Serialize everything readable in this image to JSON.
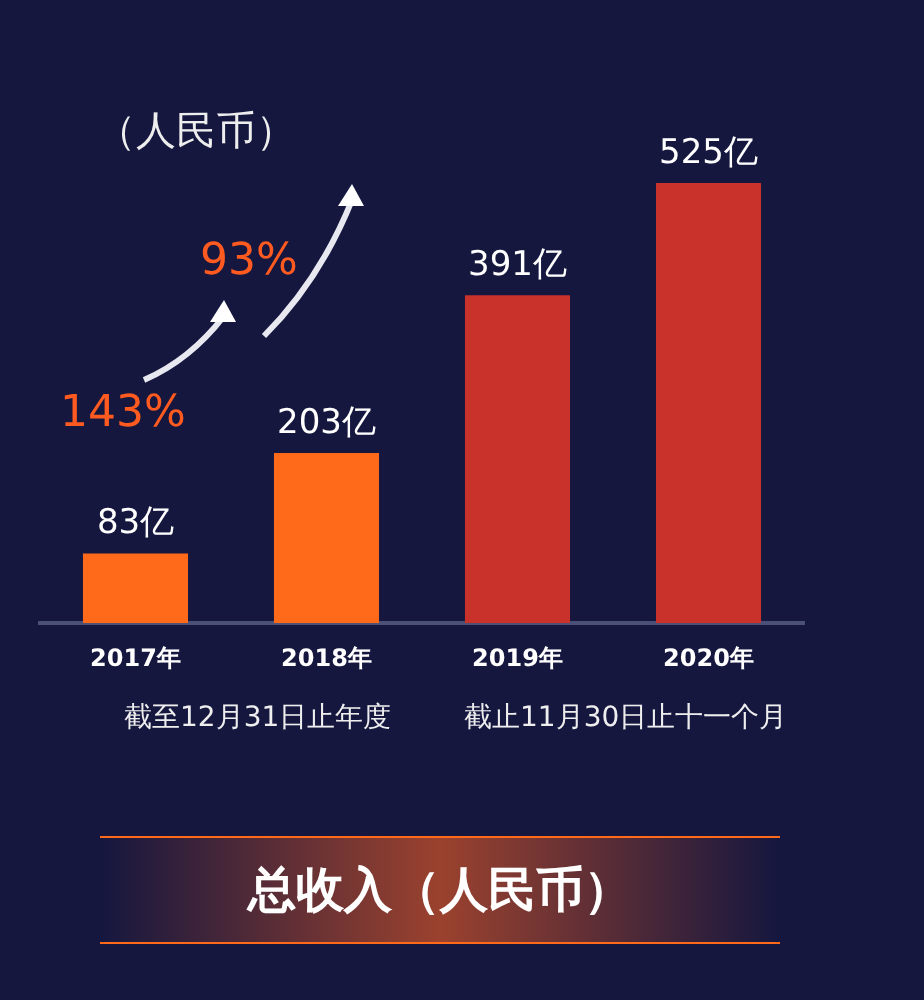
{
  "chart_data": {
    "type": "bar",
    "title": "总收入（人民币）",
    "subtitle": "（人民币）",
    "categories": [
      "2017年",
      "2018年",
      "2019年",
      "2020年"
    ],
    "values": [
      83,
      203,
      391,
      525
    ],
    "value_labels": [
      "83亿",
      "203亿",
      "391亿",
      "525亿"
    ],
    "colors": [
      "#ff6a1a",
      "#ff6a1a",
      "#c8322a",
      "#c8322a"
    ],
    "annotations": [
      "143%",
      "93%",
      "截至12月31日止年度",
      "截止11月30日止十一个月"
    ],
    "grid": false,
    "legend": false
  }
}
